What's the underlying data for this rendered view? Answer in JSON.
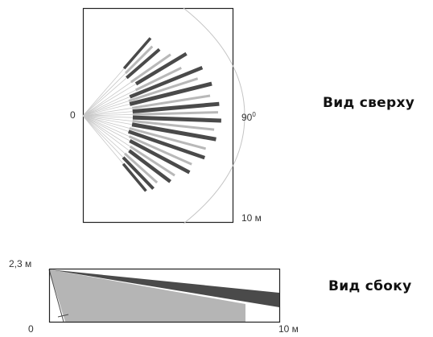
{
  "top_view": {
    "title": "Вид сверху",
    "origin_label": "0",
    "angle_label": "90",
    "angle_unit": "0",
    "range_label": "10 м"
  },
  "side_view": {
    "title": "Вид сбоку",
    "height_label": "2,3 м",
    "origin_label": "0",
    "range_label": "10 м"
  },
  "colors": {
    "dark_beam": "#4a4a4a",
    "light_beam": "#b8b8b8",
    "frame": "#222222",
    "arc": "#bbbbbb"
  }
}
